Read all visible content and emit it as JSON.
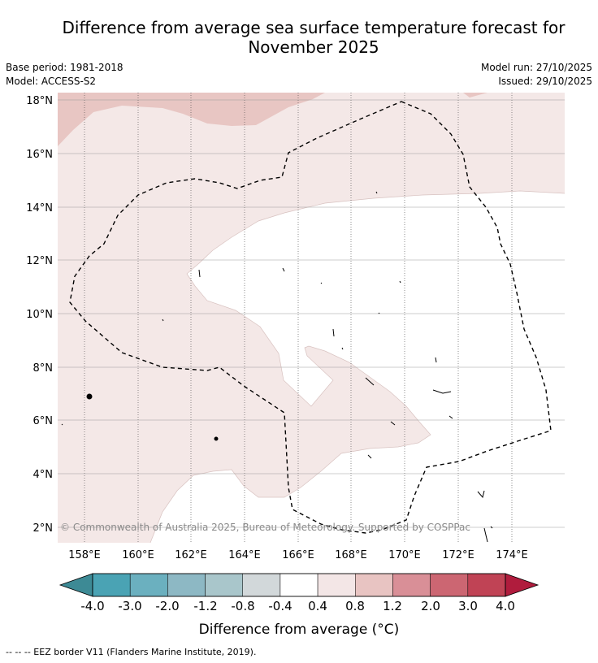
{
  "header": {
    "title_line1": "Difference from average sea surface temperature forecast for",
    "title_line2": "November 2025",
    "base_period": "Base period: 1981-2018",
    "model": "Model: ACCESS-S2",
    "model_run": "Model run: 27/10/2025",
    "issued": "Issued: 29/10/2025"
  },
  "map": {
    "lon_labels": [
      "158°E",
      "160°E",
      "162°E",
      "164°E",
      "166°E",
      "168°E",
      "170°E",
      "172°E",
      "174°E"
    ],
    "lat_labels": [
      "18°N",
      "16°N",
      "14°N",
      "12°N",
      "10°N",
      "8°N",
      "6°N",
      "4°N",
      "2°N"
    ],
    "credit": "© Commonwealth of Australia 2025, Bureau of Meteorology. Supported by COSPPac"
  },
  "colorbar": {
    "ticks": [
      "-4.0",
      "-3.0",
      "-2.0",
      "-1.2",
      "-0.8",
      "-0.4",
      "0.4",
      "0.8",
      "1.2",
      "2.0",
      "3.0",
      "4.0"
    ],
    "colors": [
      "#3d8a95",
      "#4aa3b4",
      "#6bb0bf",
      "#8db8c4",
      "#a9c6cb",
      "#d2d8da",
      "#ffffff",
      "#f3e6e6",
      "#e8c4c2",
      "#d98f97",
      "#cc6672",
      "#c04355",
      "#b01c3d"
    ],
    "label": "Difference from average (°C)"
  },
  "footnote": "-- -- -- EEZ border V11 (Flanders Marine Institute, 2019)."
}
